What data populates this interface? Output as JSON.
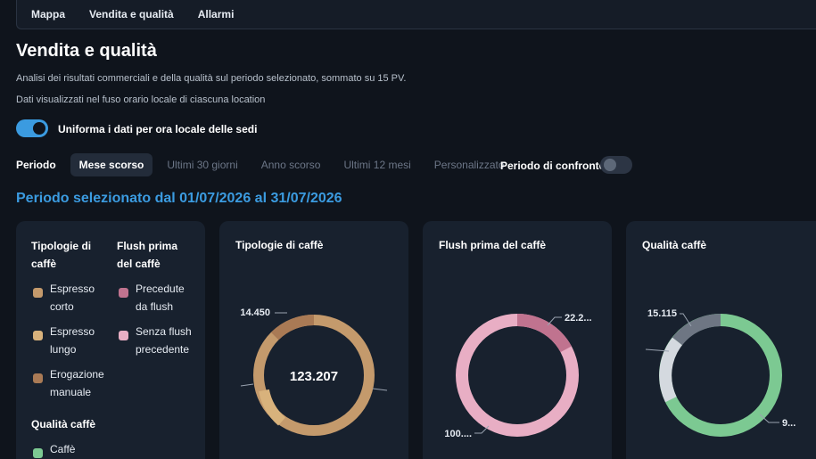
{
  "nav": {
    "items": [
      "Mappa",
      "Vendita e qualità",
      "Allarmi"
    ]
  },
  "page": {
    "title": "Vendita e qualità",
    "subtitle": "Analisi dei risultati commerciali e della qualità sul periodo selezionato, sommato su 15 PV.",
    "timezone_note": "Dati visualizzati nel fuso orario locale di ciascuna location"
  },
  "uniform_toggle": {
    "label": "Uniforma i dati per ora locale delle sedi",
    "on": true
  },
  "period": {
    "label": "Periodo",
    "options": [
      "Mese scorso",
      "Ultimi 30 giorni",
      "Anno scorso",
      "Ultimi 12 mesi",
      "Personalizzato"
    ],
    "selected": "Mese scorso",
    "compare_label": "Periodo di confronto",
    "compare_on": false
  },
  "selected_period_text": "Periodo selezionato dal 01/07/2026 al 31/07/2026",
  "legend": {
    "types_title": "Tipologie di caffè",
    "types": [
      {
        "label": "Espresso corto",
        "color": "#c49a6c"
      },
      {
        "label": "Espresso lungo",
        "color": "#d8b27c"
      },
      {
        "label": "Erogazione manuale",
        "color": "#a97a55"
      }
    ],
    "flush_title": "Flush prima del caffè",
    "flush": [
      {
        "label": "Precedute da flush",
        "color": "#c0738f"
      },
      {
        "label": "Senza flush precedente",
        "color": "#e8aec4"
      }
    ],
    "quality_title": "Qualità caffè",
    "quality": [
      {
        "label": "Caffè",
        "color": "#7cc992"
      }
    ]
  },
  "charts": {
    "types": {
      "title": "Tipologie di caffè",
      "center_value": "123.207",
      "callouts": {
        "top_left": "14.450"
      }
    },
    "flush": {
      "title": "Flush prima del caffè",
      "callouts": {
        "top_right": "22.2...",
        "bottom_left": "100...."
      }
    },
    "quality": {
      "title": "Qualità caffè",
      "callouts": {
        "top_left": "15.115",
        "bottom_right": "9..."
      }
    }
  }
}
